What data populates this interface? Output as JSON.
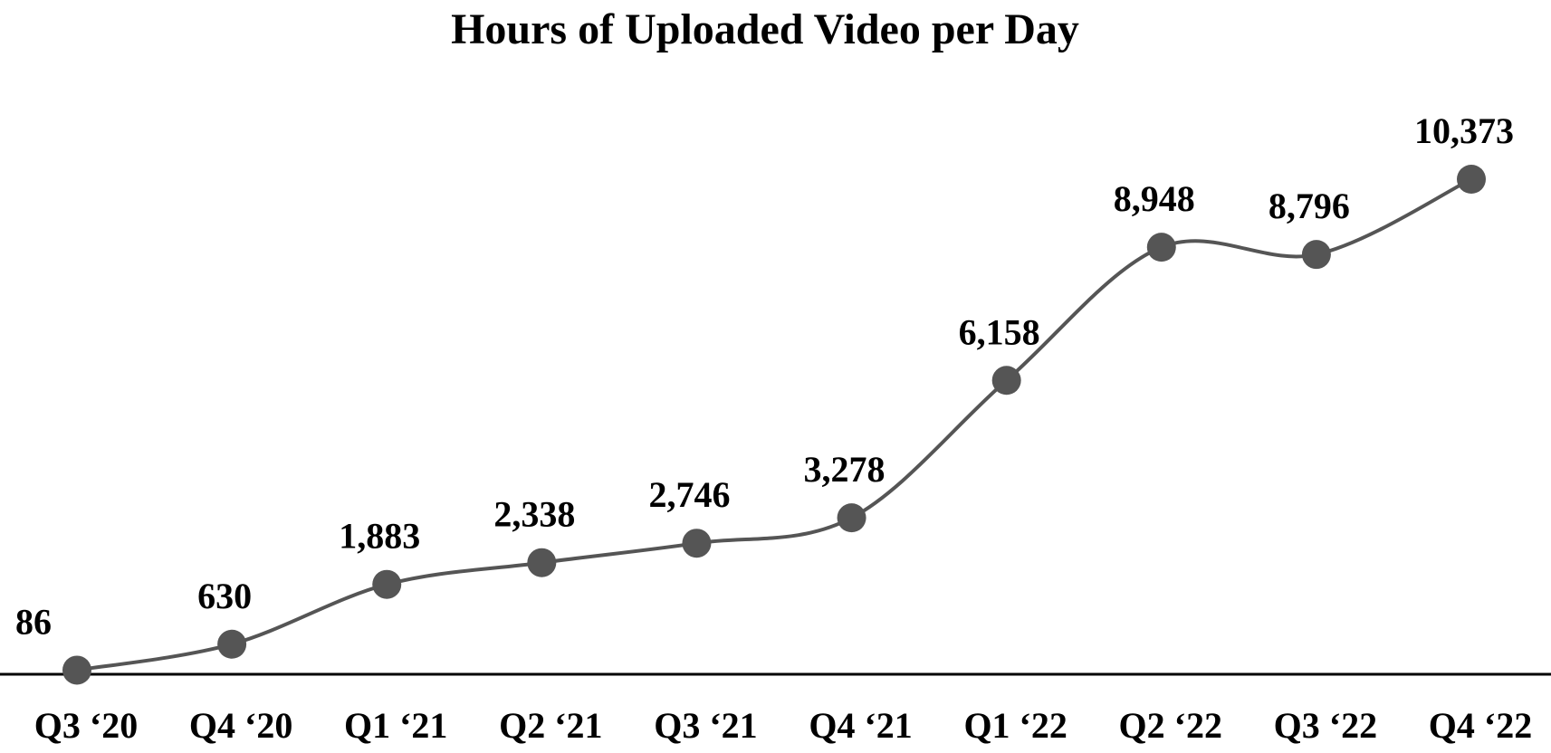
{
  "chart_data": {
    "type": "line",
    "title": "Hours of Uploaded Video per Day",
    "categories": [
      "Q3 ‘20",
      "Q4 ‘20",
      "Q1 ‘21",
      "Q2 ‘21",
      "Q3 ‘21",
      "Q4 ‘21",
      "Q1 ‘22",
      "Q2 ‘22",
      "Q3 ‘22",
      "Q4 ‘22"
    ],
    "values": [
      86,
      630,
      1883,
      2338,
      2746,
      3278,
      6158,
      8948,
      8796,
      10373
    ],
    "value_labels": [
      "86",
      "630",
      "1,883",
      "2,338",
      "2,746",
      "3,278",
      "6,158",
      "8,948",
      "8,796",
      "10,373"
    ],
    "color": "#555555",
    "smooth": true
  }
}
